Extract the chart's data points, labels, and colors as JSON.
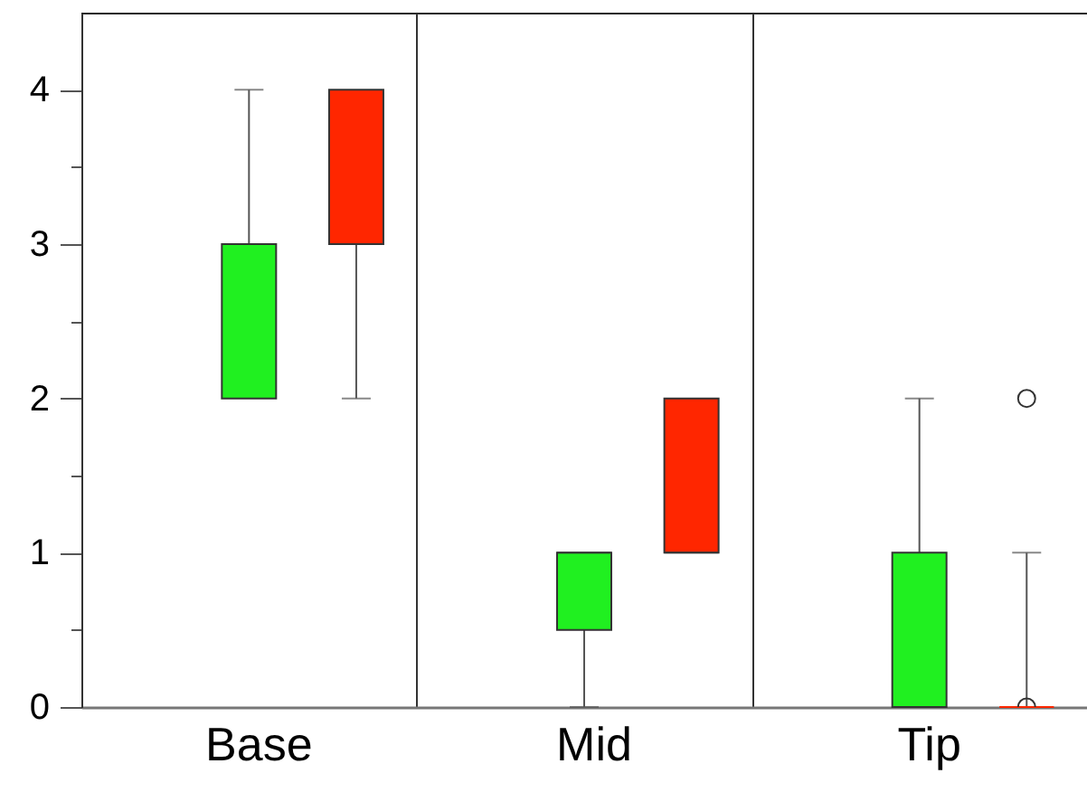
{
  "chart_data": {
    "type": "box",
    "categories": [
      "Base",
      "Mid",
      "Tip"
    ],
    "series": [
      {
        "color": "#20f020",
        "boxes": [
          {
            "low": 2,
            "q1": 2,
            "median": 3,
            "q3": 3,
            "high": 4
          },
          {
            "low": 0,
            "q1": 0.5,
            "median": 1,
            "q3": 1,
            "high": 1
          },
          {
            "low": 0,
            "q1": 0,
            "median": 0,
            "q3": 1,
            "high": 2
          }
        ]
      },
      {
        "color": "#ff2600",
        "boxes": [
          {
            "low": 2,
            "q1": 3,
            "median": 3,
            "q3": 4,
            "high": 4
          },
          {
            "low": 1,
            "q1": 1,
            "median": 1,
            "q3": 2,
            "high": 2
          },
          {
            "low": 0,
            "q1": 0,
            "median": 0,
            "q3": 0,
            "high": 1,
            "outliers": [
              0,
              2
            ]
          }
        ]
      }
    ],
    "ylim": [
      0,
      4.5
    ],
    "yticks": [
      0,
      {
        "value": 0.5,
        "label": null
      },
      1,
      {
        "value": 1.5,
        "label": null
      },
      2,
      {
        "value": 2.5,
        "label": null
      },
      3,
      {
        "value": 3.5,
        "label": null
      },
      4
    ],
    "grid": "x",
    "marker": "circle"
  }
}
